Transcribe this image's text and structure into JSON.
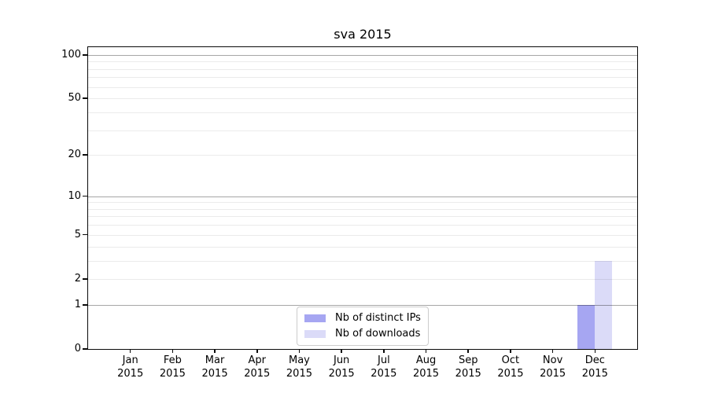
{
  "chart_data": {
    "type": "bar",
    "title": "sva 2015",
    "categories": [
      "Jan 2015",
      "Feb 2015",
      "Mar 2015",
      "Apr 2015",
      "May 2015",
      "Jun 2015",
      "Jul 2015",
      "Aug 2015",
      "Sep 2015",
      "Oct 2015",
      "Nov 2015",
      "Dec 2015"
    ],
    "series": [
      {
        "name": "Nb of distinct IPs",
        "color": "#a6a6f2",
        "values": [
          0,
          0,
          0,
          0,
          0,
          0,
          0,
          0,
          0,
          0,
          0,
          1
        ]
      },
      {
        "name": "Nb of downloads",
        "color": "#dbdbf8",
        "values": [
          0,
          0,
          0,
          0,
          0,
          0,
          0,
          0,
          0,
          0,
          0,
          3
        ]
      }
    ],
    "xlabel": "",
    "ylabel": "",
    "yscale": "log1p",
    "ylim": [
      0,
      113
    ],
    "yticks": [
      0,
      1,
      2,
      5,
      10,
      20,
      50,
      100
    ],
    "grid": {
      "on": true,
      "major": [
        1,
        10,
        100
      ],
      "minor": [
        2,
        3,
        4,
        5,
        6,
        7,
        8,
        9,
        20,
        30,
        40,
        50,
        60,
        70,
        80,
        90
      ]
    },
    "legend_position": "lower center",
    "axis_color": "#0a0a0a",
    "background": "#ffffff"
  }
}
